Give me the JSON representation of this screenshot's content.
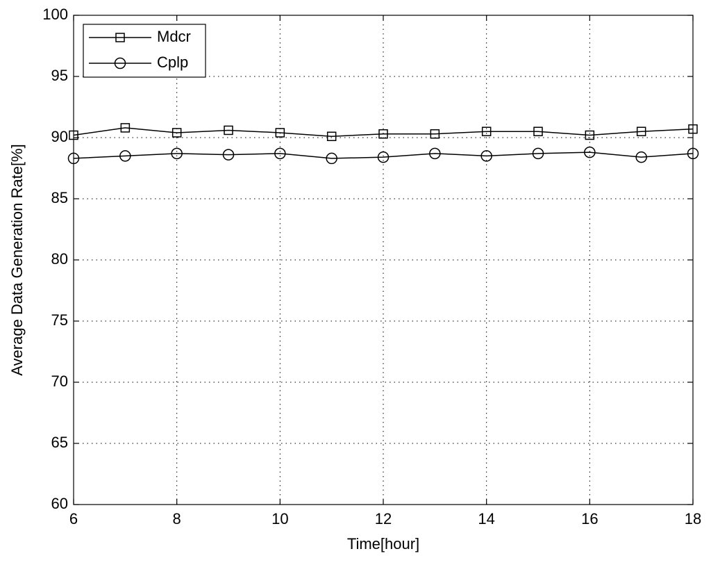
{
  "chart_data": {
    "type": "line",
    "x_label": "Time[hour]",
    "y_label": "Average Data Generation Rate[%]",
    "x": [
      6,
      7,
      8,
      9,
      10,
      11,
      12,
      13,
      14,
      15,
      16,
      17,
      18
    ],
    "series": [
      {
        "name": "Mdcr",
        "color": "#000000",
        "marker": "square",
        "values": [
          90.2,
          90.8,
          90.4,
          90.6,
          90.4,
          90.1,
          90.3,
          90.3,
          90.5,
          90.5,
          90.2,
          90.5,
          90.7
        ]
      },
      {
        "name": "Cplp",
        "color": "#000000",
        "marker": "circle",
        "values": [
          88.3,
          88.5,
          88.7,
          88.6,
          88.7,
          88.3,
          88.4,
          88.7,
          88.5,
          88.7,
          88.8,
          88.4,
          88.7
        ]
      }
    ],
    "xlim": [
      6,
      18
    ],
    "xticks": [
      6,
      8,
      10,
      12,
      14,
      16,
      18
    ],
    "ylim": [
      60,
      100
    ],
    "yticks": [
      60,
      65,
      70,
      75,
      80,
      85,
      90,
      95,
      100
    ],
    "grid": true,
    "legend": "upper left"
  }
}
